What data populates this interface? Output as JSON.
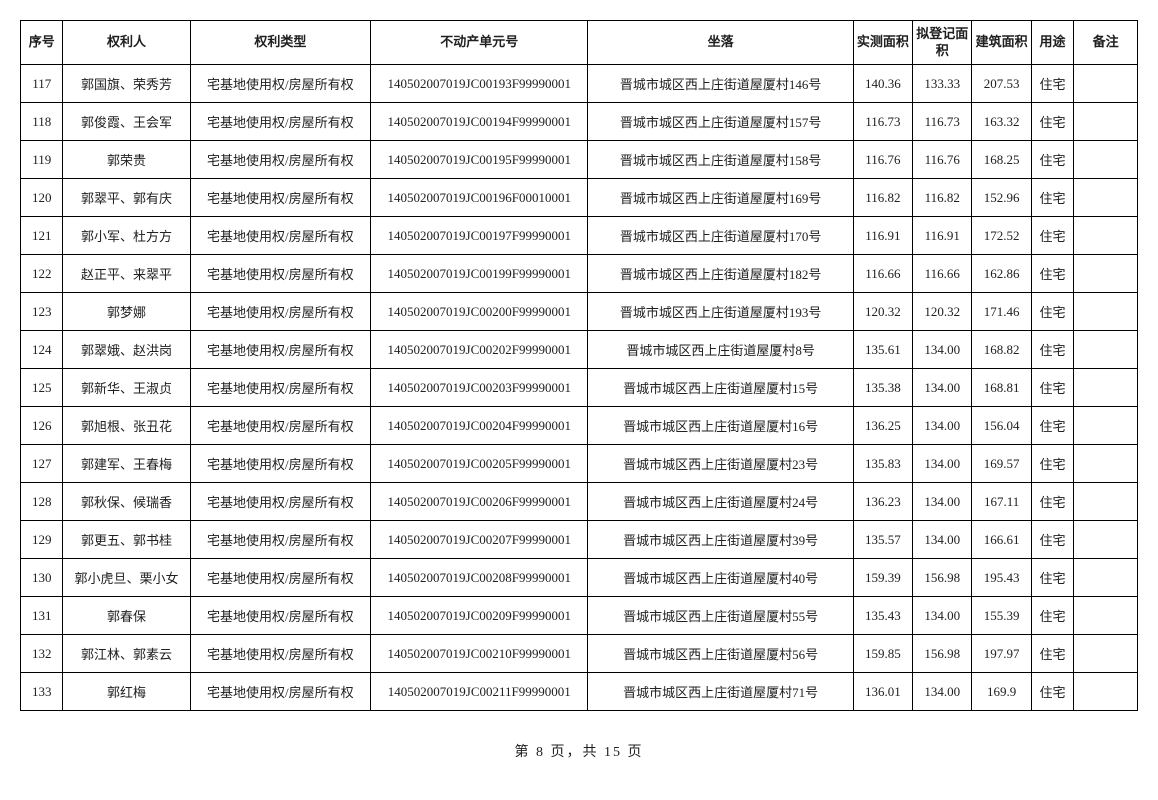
{
  "table": {
    "headers": {
      "seq": "序号",
      "owner": "权利人",
      "type": "权利类型",
      "unit": "不动产单元号",
      "loc": "坐落",
      "area1": "实测面积",
      "area2": "拟登记面积",
      "area3": "建筑面积",
      "use": "用途",
      "rem": "备注"
    },
    "rows": [
      {
        "seq": "117",
        "owner": "郭国旗、荣秀芳",
        "type": "宅基地使用权/房屋所有权",
        "unit": "140502007019JC00193F99990001",
        "loc": "晋城市城区西上庄街道屋厦村146号",
        "area1": "140.36",
        "area2": "133.33",
        "area3": "207.53",
        "use": "住宅",
        "rem": ""
      },
      {
        "seq": "118",
        "owner": "郭俊霞、王会军",
        "type": "宅基地使用权/房屋所有权",
        "unit": "140502007019JC00194F99990001",
        "loc": "晋城市城区西上庄街道屋厦村157号",
        "area1": "116.73",
        "area2": "116.73",
        "area3": "163.32",
        "use": "住宅",
        "rem": ""
      },
      {
        "seq": "119",
        "owner": "郭荣贵",
        "type": "宅基地使用权/房屋所有权",
        "unit": "140502007019JC00195F99990001",
        "loc": "晋城市城区西上庄街道屋厦村158号",
        "area1": "116.76",
        "area2": "116.76",
        "area3": "168.25",
        "use": "住宅",
        "rem": ""
      },
      {
        "seq": "120",
        "owner": "郭翠平、郭有庆",
        "type": "宅基地使用权/房屋所有权",
        "unit": "140502007019JC00196F00010001",
        "loc": "晋城市城区西上庄街道屋厦村169号",
        "area1": "116.82",
        "area2": "116.82",
        "area3": "152.96",
        "use": "住宅",
        "rem": ""
      },
      {
        "seq": "121",
        "owner": "郭小军、杜方方",
        "type": "宅基地使用权/房屋所有权",
        "unit": "140502007019JC00197F99990001",
        "loc": "晋城市城区西上庄街道屋厦村170号",
        "area1": "116.91",
        "area2": "116.91",
        "area3": "172.52",
        "use": "住宅",
        "rem": ""
      },
      {
        "seq": "122",
        "owner": "赵正平、来翠平",
        "type": "宅基地使用权/房屋所有权",
        "unit": "140502007019JC00199F99990001",
        "loc": "晋城市城区西上庄街道屋厦村182号",
        "area1": "116.66",
        "area2": "116.66",
        "area3": "162.86",
        "use": "住宅",
        "rem": ""
      },
      {
        "seq": "123",
        "owner": "郭梦娜",
        "type": "宅基地使用权/房屋所有权",
        "unit": "140502007019JC00200F99990001",
        "loc": "晋城市城区西上庄街道屋厦村193号",
        "area1": "120.32",
        "area2": "120.32",
        "area3": "171.46",
        "use": "住宅",
        "rem": ""
      },
      {
        "seq": "124",
        "owner": "郭翠娥、赵洪岗",
        "type": "宅基地使用权/房屋所有权",
        "unit": "140502007019JC00202F99990001",
        "loc": "晋城市城区西上庄街道屋厦村8号",
        "area1": "135.61",
        "area2": "134.00",
        "area3": "168.82",
        "use": "住宅",
        "rem": ""
      },
      {
        "seq": "125",
        "owner": "郭新华、王淑贞",
        "type": "宅基地使用权/房屋所有权",
        "unit": "140502007019JC00203F99990001",
        "loc": "晋城市城区西上庄街道屋厦村15号",
        "area1": "135.38",
        "area2": "134.00",
        "area3": "168.81",
        "use": "住宅",
        "rem": ""
      },
      {
        "seq": "126",
        "owner": "郭旭根、张丑花",
        "type": "宅基地使用权/房屋所有权",
        "unit": "140502007019JC00204F99990001",
        "loc": "晋城市城区西上庄街道屋厦村16号",
        "area1": "136.25",
        "area2": "134.00",
        "area3": "156.04",
        "use": "住宅",
        "rem": ""
      },
      {
        "seq": "127",
        "owner": "郭建军、王春梅",
        "type": "宅基地使用权/房屋所有权",
        "unit": "140502007019JC00205F99990001",
        "loc": "晋城市城区西上庄街道屋厦村23号",
        "area1": "135.83",
        "area2": "134.00",
        "area3": "169.57",
        "use": "住宅",
        "rem": ""
      },
      {
        "seq": "128",
        "owner": "郭秋保、候瑞香",
        "type": "宅基地使用权/房屋所有权",
        "unit": "140502007019JC00206F99990001",
        "loc": "晋城市城区西上庄街道屋厦村24号",
        "area1": "136.23",
        "area2": "134.00",
        "area3": "167.11",
        "use": "住宅",
        "rem": ""
      },
      {
        "seq": "129",
        "owner": "郭更五、郭书桂",
        "type": "宅基地使用权/房屋所有权",
        "unit": "140502007019JC00207F99990001",
        "loc": "晋城市城区西上庄街道屋厦村39号",
        "area1": "135.57",
        "area2": "134.00",
        "area3": "166.61",
        "use": "住宅",
        "rem": ""
      },
      {
        "seq": "130",
        "owner": "郭小虎旦、栗小女",
        "type": "宅基地使用权/房屋所有权",
        "unit": "140502007019JC00208F99990001",
        "loc": "晋城市城区西上庄街道屋厦村40号",
        "area1": "159.39",
        "area2": "156.98",
        "area3": "195.43",
        "use": "住宅",
        "rem": ""
      },
      {
        "seq": "131",
        "owner": "郭春保",
        "type": "宅基地使用权/房屋所有权",
        "unit": "140502007019JC00209F99990001",
        "loc": "晋城市城区西上庄街道屋厦村55号",
        "area1": "135.43",
        "area2": "134.00",
        "area3": "155.39",
        "use": "住宅",
        "rem": ""
      },
      {
        "seq": "132",
        "owner": "郭江林、郭素云",
        "type": "宅基地使用权/房屋所有权",
        "unit": "140502007019JC00210F99990001",
        "loc": "晋城市城区西上庄街道屋厦村56号",
        "area1": "159.85",
        "area2": "156.98",
        "area3": "197.97",
        "use": "住宅",
        "rem": ""
      },
      {
        "seq": "133",
        "owner": "郭红梅",
        "type": "宅基地使用权/房屋所有权",
        "unit": "140502007019JC00211F99990001",
        "loc": "晋城市城区西上庄街道屋厦村71号",
        "area1": "136.01",
        "area2": "134.00",
        "area3": "169.9",
        "use": "住宅",
        "rem": ""
      }
    ]
  },
  "footer": {
    "page_text": "第 8 页，共 15 页"
  }
}
